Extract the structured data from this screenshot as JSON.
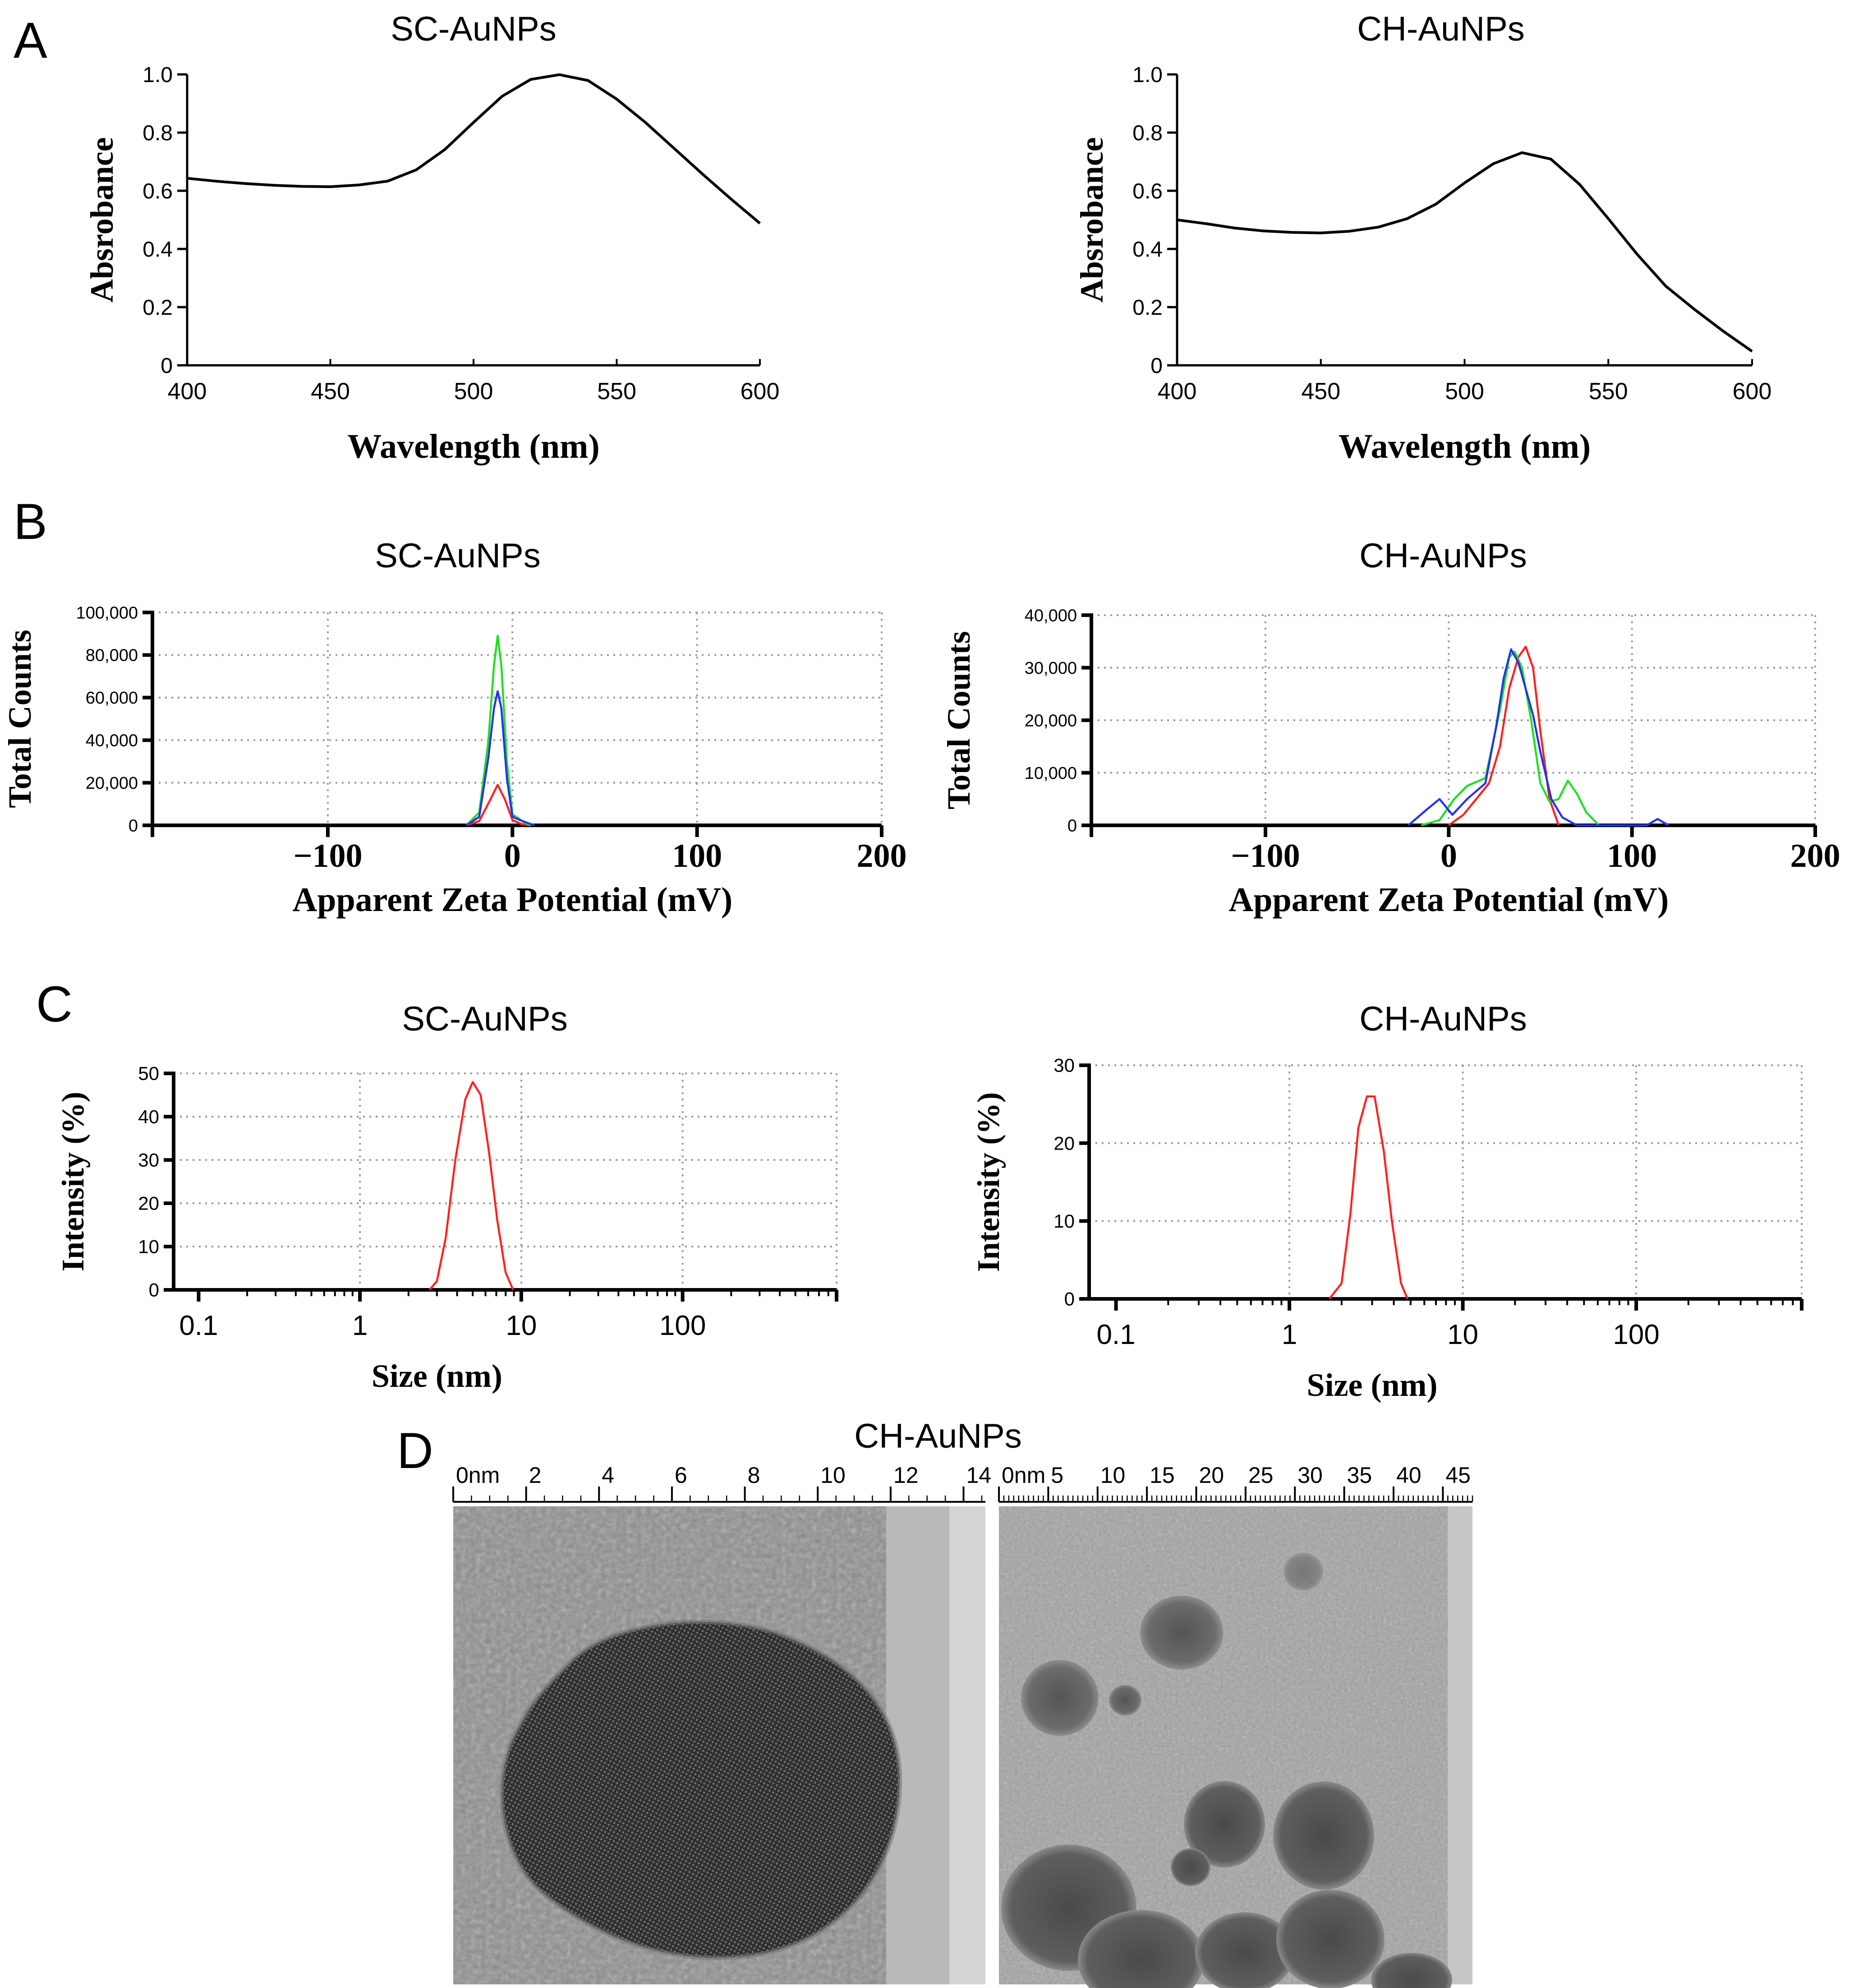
{
  "figure": {
    "panel_labels": {
      "a": "A",
      "b": "B",
      "c": "C",
      "d": "D"
    }
  },
  "colors": {
    "axis": "#000000",
    "curve": "#000000",
    "red": "#ff2020",
    "green": "#22dd22",
    "blue": "#2233ee",
    "grid": "#9a9a9a"
  },
  "chart_data": [
    {
      "id": "A1",
      "type": "line",
      "title": "SC-AuNPs",
      "xlabel": "Wavelength (nm)",
      "ylabel": "Absrobance",
      "xlim": [
        400,
        600
      ],
      "ylim": [
        0,
        1.0
      ],
      "xticks": [
        "400",
        "450",
        "500",
        "550",
        "600"
      ],
      "yticks": [
        "0",
        "0.2",
        "0.4",
        "0.6",
        "0.8",
        "1.0"
      ],
      "series": [
        {
          "name": "absorbance",
          "color": "#000000",
          "x": [
            400,
            410,
            420,
            430,
            440,
            450,
            460,
            470,
            480,
            490,
            500,
            510,
            520,
            530,
            540,
            550,
            560,
            570,
            580,
            590,
            600
          ],
          "y": [
            0.643,
            0.633,
            0.625,
            0.619,
            0.615,
            0.614,
            0.62,
            0.633,
            0.672,
            0.742,
            0.835,
            0.925,
            0.983,
            0.999,
            0.979,
            0.915,
            0.835,
            0.746,
            0.657,
            0.571,
            0.488
          ]
        }
      ]
    },
    {
      "id": "A2",
      "type": "line",
      "title": "CH-AuNPs",
      "xlabel": "Wavelength (nm)",
      "ylabel": "Absrobance",
      "xlim": [
        400,
        600
      ],
      "ylim": [
        0,
        1.0
      ],
      "xticks": [
        "400",
        "450",
        "500",
        "550",
        "600"
      ],
      "yticks": [
        "0",
        "0.2",
        "0.4",
        "0.6",
        "0.8",
        "1.0"
      ],
      "series": [
        {
          "name": "absorbance",
          "color": "#000000",
          "x": [
            400,
            410,
            420,
            430,
            440,
            450,
            460,
            470,
            480,
            490,
            500,
            510,
            520,
            530,
            540,
            550,
            560,
            570,
            580,
            590,
            600
          ],
          "y": [
            0.5,
            0.487,
            0.472,
            0.462,
            0.457,
            0.455,
            0.461,
            0.475,
            0.504,
            0.554,
            0.627,
            0.693,
            0.731,
            0.709,
            0.622,
            0.504,
            0.382,
            0.272,
            0.192,
            0.117,
            0.048
          ]
        }
      ]
    },
    {
      "id": "B1",
      "type": "line",
      "title": "SC-AuNPs",
      "xlabel": "Apparent Zeta Potential (mV)",
      "ylabel": "Total Counts",
      "xlim": [
        -195,
        200
      ],
      "ylim": [
        0,
        100000
      ],
      "xticks": [
        "−100",
        "0",
        "100",
        "200"
      ],
      "yticks": [
        "0",
        "20,000",
        "40,000",
        "60,000",
        "80,000",
        "100,000"
      ],
      "series": [
        {
          "name": "run-red",
          "color": "#ff2020",
          "x": [
            -25,
            -18,
            -12,
            -8,
            -4,
            0,
            5,
            10
          ],
          "y": [
            0,
            2000,
            12000,
            19000,
            12000,
            2500,
            500,
            0
          ]
        },
        {
          "name": "run-green",
          "color": "#22dd22",
          "x": [
            -25,
            -18,
            -13,
            -10,
            -8,
            -6,
            -3,
            0,
            3,
            6,
            10
          ],
          "y": [
            0,
            6000,
            40000,
            75000,
            89000,
            75000,
            30000,
            5000,
            3500,
            1500,
            0
          ]
        },
        {
          "name": "run-blue",
          "color": "#2233ee",
          "x": [
            -25,
            -18,
            -13,
            -10,
            -8,
            -6,
            -3,
            0,
            4,
            8,
            12
          ],
          "y": [
            0,
            4000,
            32000,
            55000,
            63000,
            55000,
            22000,
            4000,
            2500,
            1200,
            0
          ]
        }
      ]
    },
    {
      "id": "B2",
      "type": "line",
      "title": "CH-AuNPs",
      "xlabel": "Apparent Zeta Potential (mV)",
      "ylabel": "Total Counts",
      "xlim": [
        -195,
        200
      ],
      "ylim": [
        0,
        40000
      ],
      "xticks": [
        "−100",
        "0",
        "100",
        "200"
      ],
      "yticks": [
        "0",
        "10,000",
        "20,000",
        "30,000",
        "40,000"
      ],
      "series": [
        {
          "name": "run-red",
          "color": "#ff2020",
          "x": [
            0,
            8,
            15,
            22,
            28,
            33,
            38,
            42,
            46,
            50,
            55,
            60
          ],
          "y": [
            0,
            2000,
            5000,
            8000,
            15000,
            26000,
            32000,
            34000,
            30000,
            18000,
            5000,
            0
          ]
        },
        {
          "name": "run-green",
          "color": "#22dd22",
          "x": [
            -15,
            -5,
            3,
            10,
            20,
            28,
            33,
            36,
            40,
            45,
            50,
            55,
            60,
            65,
            70,
            75,
            82
          ],
          "y": [
            0,
            1000,
            5000,
            7500,
            9000,
            22000,
            32000,
            33000,
            30000,
            20000,
            8000,
            4500,
            5000,
            8500,
            6000,
            2500,
            0
          ]
        },
        {
          "name": "run-blue",
          "color": "#2233ee",
          "x": [
            -22,
            -12,
            -5,
            2,
            10,
            20,
            26,
            30,
            34,
            38,
            42,
            46,
            50,
            56,
            62,
            70,
            108,
            114,
            120
          ],
          "y": [
            0,
            3000,
            5000,
            2000,
            5000,
            8000,
            19000,
            28000,
            33500,
            31000,
            26000,
            21000,
            14000,
            5000,
            1500,
            0,
            0,
            1200,
            0
          ]
        }
      ]
    },
    {
      "id": "C1",
      "type": "line",
      "title": "SC-AuNPs",
      "xlabel": "Size (nm)",
      "ylabel": "Intensity (%)",
      "xscale": "log",
      "xlim": [
        0.07,
        900
      ],
      "ylim": [
        0,
        50
      ],
      "xticks": [
        "0.1",
        "1",
        "10",
        "100"
      ],
      "yticks": [
        "0",
        "10",
        "20",
        "30",
        "40",
        "50"
      ],
      "series": [
        {
          "name": "intensity",
          "color": "#ff2020",
          "x": [
            2.7,
            3.0,
            3.4,
            3.9,
            4.5,
            5.0,
            5.6,
            6.3,
            7.1,
            8.0,
            8.9
          ],
          "y": [
            0,
            2,
            12,
            30,
            44,
            48,
            45,
            32,
            16,
            4,
            0
          ]
        }
      ]
    },
    {
      "id": "C2",
      "type": "line",
      "title": "CH-AuNPs",
      "xlabel": "Size (nm)",
      "ylabel": "Intensity (%)",
      "xscale": "log",
      "xlim": [
        0.07,
        900
      ],
      "ylim": [
        0,
        30
      ],
      "xticks": [
        "0.1",
        "1",
        "10",
        "100"
      ],
      "yticks": [
        "0",
        "10",
        "20",
        "30"
      ],
      "series": [
        {
          "name": "intensity",
          "color": "#ff2020",
          "x": [
            1.7,
            2.0,
            2.25,
            2.5,
            2.8,
            3.1,
            3.5,
            3.9,
            4.4,
            4.8
          ],
          "y": [
            0,
            2,
            11,
            22,
            26,
            26,
            19,
            10,
            2,
            0
          ]
        }
      ]
    }
  ],
  "tem": {
    "title": "CH-AuNPs",
    "left_scale": {
      "labels": [
        "0nm",
        "2",
        "4",
        "6",
        "8",
        "10",
        "12",
        "14"
      ]
    },
    "right_scale": {
      "labels": [
        "0nm",
        "5",
        "10",
        "15",
        "20",
        "25",
        "30",
        "35",
        "40",
        "45"
      ]
    }
  }
}
